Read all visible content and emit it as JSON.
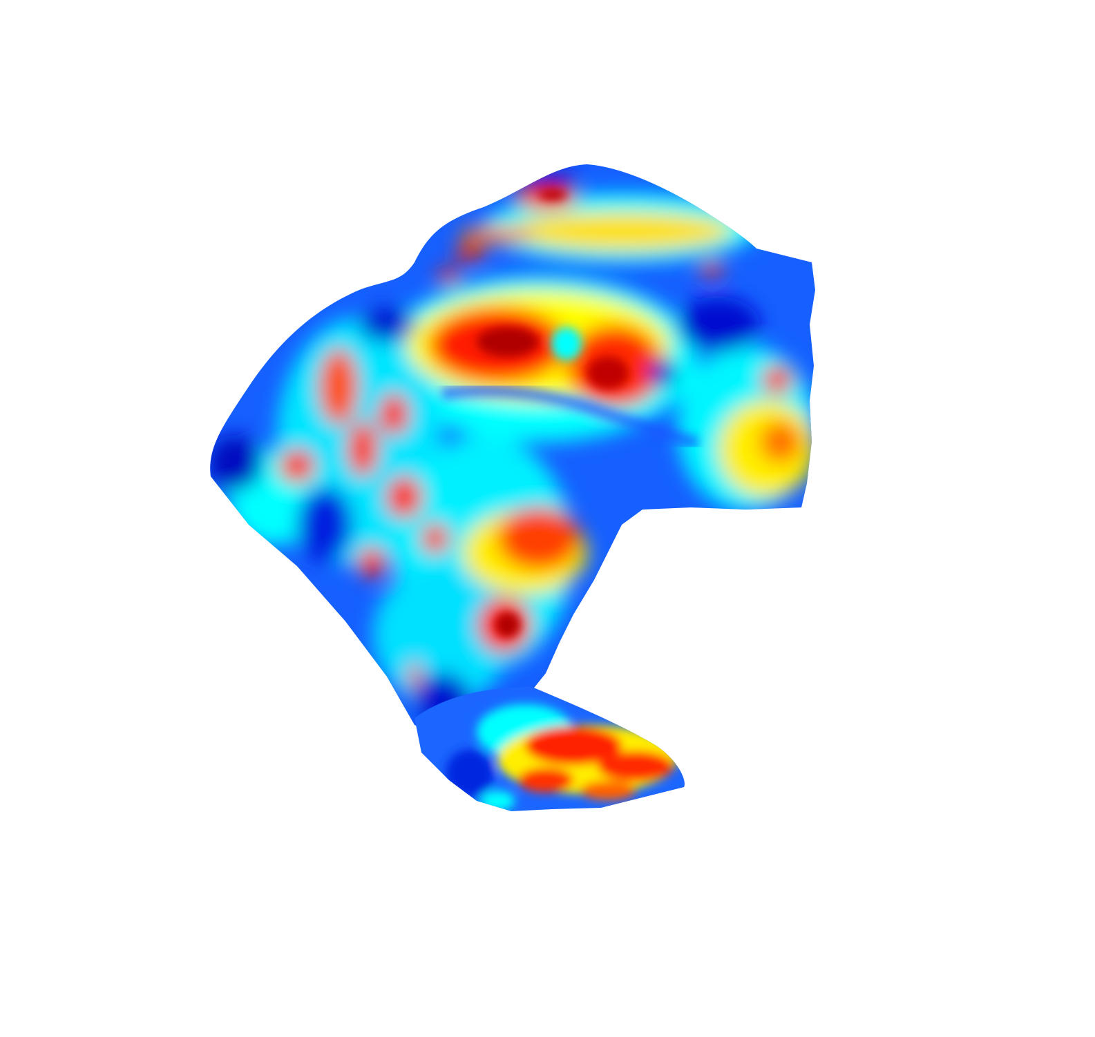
{
  "scene": {
    "description_name": "leg-mesh-scalar-field",
    "background_color": "#ffffff",
    "colormap": {
      "name": "jet",
      "stops": [
        "#00008f",
        "#0000ff",
        "#0080ff",
        "#00ffff",
        "#80ff80",
        "#ffff00",
        "#ff8000",
        "#ff0000",
        "#800000"
      ]
    },
    "base_color": "#1f7bff"
  }
}
